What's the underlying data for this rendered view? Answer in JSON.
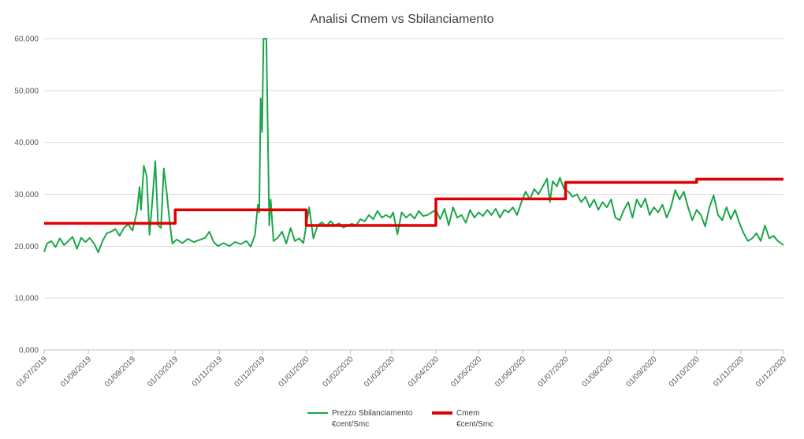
{
  "chart_data": {
    "type": "line",
    "title": "Analisi Cmem vs Sbilanciamento",
    "xlabel": "",
    "ylabel": "",
    "ylim": [
      0,
      60
    ],
    "y_ticks": [
      "0,000",
      "10,000",
      "20,000",
      "30,000",
      "40,000",
      "50,000",
      "60,000"
    ],
    "x_ticks": [
      "01/07/2019",
      "01/08/2019",
      "01/09/2019",
      "01/10/2019",
      "01/11/2019",
      "01/12/2019",
      "01/01/2020",
      "01/02/2020",
      "01/03/2020",
      "01/04/2020",
      "01/05/2020",
      "01/06/2020",
      "01/07/2020",
      "01/08/2020",
      "01/09/2020",
      "01/10/2020",
      "01/11/2020",
      "01/12/2020"
    ],
    "x_range": [
      "01/07/2019",
      "01/12/2020"
    ],
    "grid": true,
    "legend_position": "bottom",
    "series": [
      {
        "name": "Prezzo Sbilanciamento €cent/Smc",
        "legend_lines": [
          "Prezzo Sbilanciamento",
          "€cent/Smc"
        ],
        "color": "#1aa64a",
        "points": [
          [
            "01/07/2019",
            18.9
          ],
          [
            "03/07/2019",
            20.5
          ],
          [
            "06/07/2019",
            21.0
          ],
          [
            "09/07/2019",
            19.8
          ],
          [
            "12/07/2019",
            21.5
          ],
          [
            "15/07/2019",
            20.2
          ],
          [
            "18/07/2019",
            21.0
          ],
          [
            "21/07/2019",
            21.8
          ],
          [
            "24/07/2019",
            19.5
          ],
          [
            "27/07/2019",
            21.6
          ],
          [
            "30/07/2019",
            20.8
          ],
          [
            "02/08/2019",
            21.6
          ],
          [
            "05/08/2019",
            20.5
          ],
          [
            "08/08/2019",
            18.8
          ],
          [
            "11/08/2019",
            21.0
          ],
          [
            "14/08/2019",
            22.5
          ],
          [
            "17/08/2019",
            22.8
          ],
          [
            "20/08/2019",
            23.3
          ],
          [
            "23/08/2019",
            22.0
          ],
          [
            "26/08/2019",
            23.5
          ],
          [
            "29/08/2019",
            24.2
          ],
          [
            "01/09/2019",
            23.0
          ],
          [
            "04/09/2019",
            26.5
          ],
          [
            "06/09/2019",
            31.4
          ],
          [
            "07/09/2019",
            27.0
          ],
          [
            "09/09/2019",
            35.5
          ],
          [
            "11/09/2019",
            33.5
          ],
          [
            "13/09/2019",
            22.2
          ],
          [
            "15/09/2019",
            29.0
          ],
          [
            "17/09/2019",
            36.4
          ],
          [
            "19/09/2019",
            24.0
          ],
          [
            "21/09/2019",
            23.5
          ],
          [
            "23/09/2019",
            35.0
          ],
          [
            "25/09/2019",
            30.5
          ],
          [
            "27/09/2019",
            25.0
          ],
          [
            "29/09/2019",
            20.5
          ],
          [
            "02/10/2019",
            21.3
          ],
          [
            "06/10/2019",
            20.6
          ],
          [
            "10/10/2019",
            21.4
          ],
          [
            "14/10/2019",
            20.8
          ],
          [
            "18/10/2019",
            21.2
          ],
          [
            "22/10/2019",
            21.6
          ],
          [
            "25/10/2019",
            22.8
          ],
          [
            "28/10/2019",
            20.8
          ],
          [
            "31/10/2019",
            20.0
          ],
          [
            "04/11/2019",
            20.6
          ],
          [
            "08/11/2019",
            20.0
          ],
          [
            "12/11/2019",
            20.8
          ],
          [
            "16/11/2019",
            20.4
          ],
          [
            "20/11/2019",
            21.0
          ],
          [
            "23/11/2019",
            19.9
          ],
          [
            "26/11/2019",
            22.2
          ],
          [
            "28/11/2019",
            28.0
          ],
          [
            "29/11/2019",
            26.5
          ],
          [
            "30/11/2019",
            48.5
          ],
          [
            "01/12/2019",
            42.0
          ],
          [
            "02/12/2019",
            60.0
          ],
          [
            "04/12/2019",
            60.0
          ],
          [
            "06/12/2019",
            24.0
          ],
          [
            "07/12/2019",
            29.0
          ],
          [
            "09/12/2019",
            21.0
          ],
          [
            "12/12/2019",
            21.6
          ],
          [
            "15/12/2019",
            22.8
          ],
          [
            "18/12/2019",
            20.5
          ],
          [
            "21/12/2019",
            23.5
          ],
          [
            "24/12/2019",
            21.0
          ],
          [
            "27/12/2019",
            21.5
          ],
          [
            "30/12/2019",
            20.6
          ],
          [
            "03/01/2020",
            27.5
          ],
          [
            "06/01/2020",
            21.5
          ],
          [
            "09/01/2020",
            24.0
          ],
          [
            "12/01/2020",
            24.6
          ],
          [
            "15/01/2020",
            23.8
          ],
          [
            "18/01/2020",
            24.8
          ],
          [
            "21/01/2020",
            24.0
          ],
          [
            "24/01/2020",
            24.4
          ],
          [
            "27/01/2020",
            23.6
          ],
          [
            "30/01/2020",
            24.0
          ],
          [
            "02/02/2020",
            24.3
          ],
          [
            "05/02/2020",
            24.0
          ],
          [
            "08/02/2020",
            25.2
          ],
          [
            "11/02/2020",
            24.8
          ],
          [
            "14/02/2020",
            26.0
          ],
          [
            "17/02/2020",
            25.2
          ],
          [
            "20/02/2020",
            26.8
          ],
          [
            "23/02/2020",
            25.5
          ],
          [
            "26/02/2020",
            26.0
          ],
          [
            "29/02/2020",
            25.5
          ],
          [
            "02/03/2020",
            26.5
          ],
          [
            "05/03/2020",
            22.3
          ],
          [
            "08/03/2020",
            26.5
          ],
          [
            "11/03/2020",
            25.5
          ],
          [
            "14/03/2020",
            26.2
          ],
          [
            "17/03/2020",
            25.3
          ],
          [
            "20/03/2020",
            26.8
          ],
          [
            "23/03/2020",
            25.8
          ],
          [
            "26/03/2020",
            26.0
          ],
          [
            "29/03/2020",
            26.5
          ],
          [
            "01/04/2020",
            27.0
          ],
          [
            "04/04/2020",
            25.2
          ],
          [
            "07/04/2020",
            27.2
          ],
          [
            "10/04/2020",
            24.0
          ],
          [
            "13/04/2020",
            27.5
          ],
          [
            "16/04/2020",
            25.5
          ],
          [
            "19/04/2020",
            26.0
          ],
          [
            "22/04/2020",
            24.5
          ],
          [
            "25/04/2020",
            27.0
          ],
          [
            "28/04/2020",
            25.5
          ],
          [
            "01/05/2020",
            26.5
          ],
          [
            "04/05/2020",
            25.8
          ],
          [
            "07/05/2020",
            27.0
          ],
          [
            "10/05/2020",
            26.0
          ],
          [
            "13/05/2020",
            27.2
          ],
          [
            "16/05/2020",
            25.5
          ],
          [
            "19/05/2020",
            27.0
          ],
          [
            "22/05/2020",
            26.5
          ],
          [
            "25/05/2020",
            27.5
          ],
          [
            "28/05/2020",
            26.0
          ],
          [
            "31/05/2020",
            28.5
          ],
          [
            "03/06/2020",
            30.5
          ],
          [
            "06/06/2020",
            29.0
          ],
          [
            "09/06/2020",
            31.0
          ],
          [
            "12/06/2020",
            30.0
          ],
          [
            "15/06/2020",
            31.5
          ],
          [
            "18/06/2020",
            33.0
          ],
          [
            "20/06/2020",
            28.5
          ],
          [
            "22/06/2020",
            32.5
          ],
          [
            "25/06/2020",
            31.5
          ],
          [
            "27/06/2020",
            33.2
          ],
          [
            "30/06/2020",
            31.0
          ],
          [
            "03/07/2020",
            30.5
          ],
          [
            "06/07/2020",
            29.5
          ],
          [
            "09/07/2020",
            30.0
          ],
          [
            "12/07/2020",
            28.5
          ],
          [
            "15/07/2020",
            29.5
          ],
          [
            "18/07/2020",
            27.5
          ],
          [
            "21/07/2020",
            29.0
          ],
          [
            "24/07/2020",
            27.0
          ],
          [
            "27/07/2020",
            28.5
          ],
          [
            "30/07/2020",
            27.5
          ],
          [
            "02/08/2020",
            29.0
          ],
          [
            "05/08/2020",
            25.5
          ],
          [
            "08/08/2020",
            25.0
          ],
          [
            "11/08/2020",
            27.0
          ],
          [
            "14/08/2020",
            28.5
          ],
          [
            "17/08/2020",
            25.5
          ],
          [
            "20/08/2020",
            29.0
          ],
          [
            "23/08/2020",
            27.5
          ],
          [
            "26/08/2020",
            29.2
          ],
          [
            "29/08/2020",
            26.0
          ],
          [
            "01/09/2020",
            27.5
          ],
          [
            "04/09/2020",
            26.5
          ],
          [
            "07/09/2020",
            28.0
          ],
          [
            "10/09/2020",
            25.5
          ],
          [
            "13/09/2020",
            27.5
          ],
          [
            "16/09/2020",
            30.8
          ],
          [
            "19/09/2020",
            29.0
          ],
          [
            "22/09/2020",
            30.5
          ],
          [
            "25/09/2020",
            27.5
          ],
          [
            "28/09/2020",
            25.0
          ],
          [
            "01/10/2020",
            27.0
          ],
          [
            "04/10/2020",
            26.0
          ],
          [
            "07/10/2020",
            23.8
          ],
          [
            "10/10/2020",
            27.5
          ],
          [
            "13/10/2020",
            29.8
          ],
          [
            "16/10/2020",
            26.0
          ],
          [
            "19/10/2020",
            25.0
          ],
          [
            "22/10/2020",
            27.5
          ],
          [
            "25/10/2020",
            25.2
          ],
          [
            "28/10/2020",
            27.0
          ],
          [
            "31/10/2020",
            24.5
          ],
          [
            "03/11/2020",
            22.5
          ],
          [
            "06/11/2020",
            21.0
          ],
          [
            "09/11/2020",
            21.5
          ],
          [
            "12/11/2020",
            22.5
          ],
          [
            "15/11/2020",
            21.0
          ],
          [
            "18/11/2020",
            24.0
          ],
          [
            "21/11/2020",
            21.5
          ],
          [
            "24/11/2020",
            22.0
          ],
          [
            "27/11/2020",
            21.0
          ],
          [
            "01/12/2020",
            20.2
          ]
        ]
      },
      {
        "name": "Cmem €cent/Smc",
        "legend_lines": [
          "Cmem",
          "€cent/Smc"
        ],
        "color": "#e00000",
        "points": [
          [
            "01/07/2019",
            24.4
          ],
          [
            "01/10/2019",
            24.4
          ],
          [
            "01/10/2019",
            27.0
          ],
          [
            "01/01/2020",
            27.0
          ],
          [
            "01/01/2020",
            24.0
          ],
          [
            "01/04/2020",
            24.0
          ],
          [
            "01/04/2020",
            29.1
          ],
          [
            "01/07/2020",
            29.1
          ],
          [
            "01/07/2020",
            32.3
          ],
          [
            "01/10/2020",
            32.3
          ],
          [
            "01/10/2020",
            32.9
          ],
          [
            "01/12/2020",
            32.9
          ]
        ]
      }
    ]
  }
}
